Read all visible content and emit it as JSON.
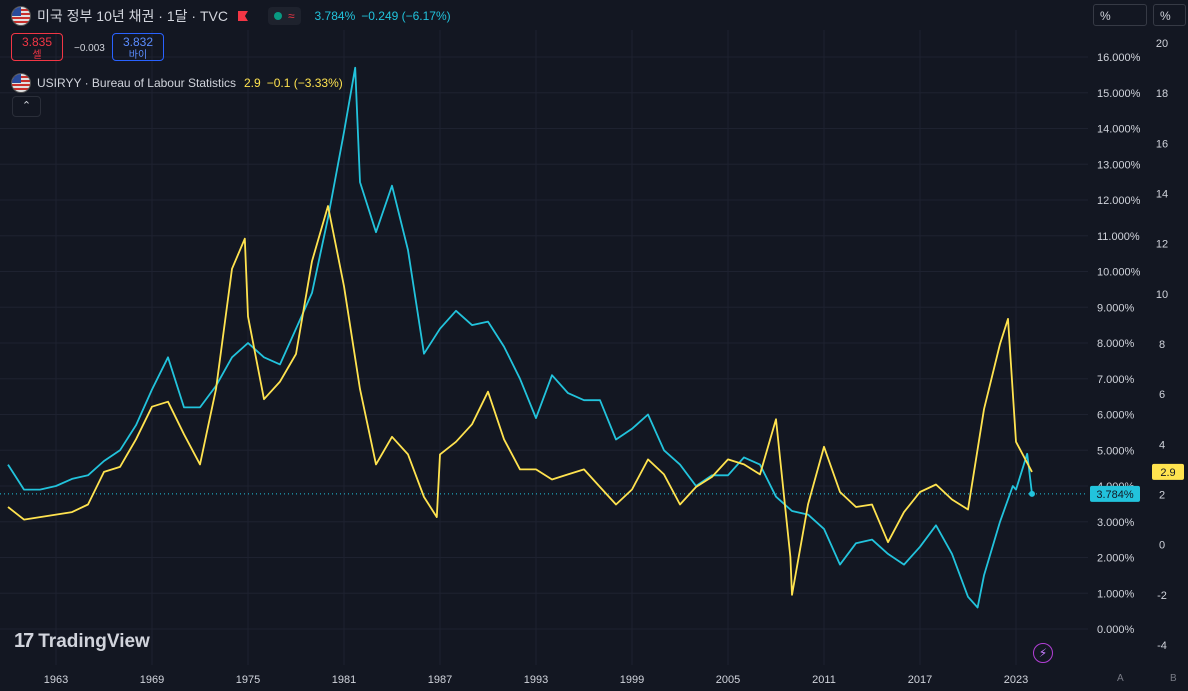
{
  "header": {
    "main_title": "미국 정부 10년 채권 · 1달 · TVC",
    "last_value": "3.784%",
    "change": "−0.249 (−6.17%)",
    "sell_value": "3.835",
    "sell_label": "셀",
    "spread": "−0.003",
    "buy_value": "3.832",
    "buy_label": "바이",
    "secondary_title": "USIRYY · Bureau of Labour Statistics",
    "secondary_value": "2.9",
    "secondary_change": "−0.1 (−3.33%)",
    "collapse_icon": "chevron-up-icon"
  },
  "right_scale": {
    "unit_left": "%",
    "unit_right": "%",
    "price_tag": "3.784%",
    "cpi_tag": "2.9",
    "letters": [
      "A",
      "B"
    ]
  },
  "logo": {
    "mark": "17",
    "name": "TradingView"
  },
  "colors": {
    "treasury": "#22c3dc",
    "cpi": "#ffe34f",
    "background": "#131722",
    "grid": "#1e2230"
  },
  "chart_data": {
    "type": "line",
    "x_ticks": [
      "1963",
      "1969",
      "1975",
      "1981",
      "1987",
      "1993",
      "1999",
      "2005",
      "2011",
      "2017",
      "2023"
    ],
    "x_range": [
      1959.5,
      2027.5
    ],
    "y_left_ticks": [
      "0.000%",
      "1.000%",
      "2.000%",
      "3.000%",
      "4.000%",
      "5.000%",
      "6.000%",
      "7.000%",
      "8.000%",
      "9.000%",
      "10.000%",
      "11.000%",
      "12.000%",
      "13.000%",
      "14.000%",
      "15.000%",
      "16.000%"
    ],
    "y_left_range": [
      0,
      16
    ],
    "y_right_ticks": [
      "-4",
      "-2",
      "0",
      "2",
      "4",
      "6",
      "8",
      "10",
      "12",
      "14",
      "16",
      "18",
      "20"
    ],
    "y_right_range": [
      -4,
      20
    ],
    "series": [
      {
        "name": "미국 정부 10년 채권",
        "axis": "left",
        "x": [
          1960,
          1961,
          1962,
          1963,
          1964,
          1965,
          1966,
          1967,
          1968,
          1969,
          1970,
          1971,
          1972,
          1973,
          1974,
          1975,
          1976,
          1977,
          1978,
          1979,
          1980,
          1981,
          1981.7,
          1982,
          1983,
          1984,
          1985,
          1986,
          1987,
          1988,
          1989,
          1990,
          1991,
          1992,
          1993,
          1994,
          1995,
          1996,
          1997,
          1998,
          1999,
          2000,
          2001,
          2002,
          2003,
          2004,
          2005,
          2006,
          2007,
          2008,
          2009,
          2010,
          2011,
          2012,
          2013,
          2014,
          2015,
          2016,
          2017,
          2018,
          2019,
          2020,
          2020.6,
          2021,
          2022,
          2022.8,
          2023,
          2023.7,
          2024
        ],
        "y": [
          4.6,
          3.9,
          3.9,
          4.0,
          4.2,
          4.3,
          4.7,
          5.0,
          5.7,
          6.7,
          7.6,
          6.2,
          6.2,
          6.8,
          7.6,
          8.0,
          7.6,
          7.4,
          8.4,
          9.4,
          11.5,
          13.9,
          15.7,
          12.5,
          11.1,
          12.4,
          10.6,
          7.7,
          8.4,
          8.9,
          8.5,
          8.6,
          7.9,
          7.0,
          5.9,
          7.1,
          6.6,
          6.4,
          6.4,
          5.3,
          5.6,
          6.0,
          5.0,
          4.6,
          4.0,
          4.3,
          4.3,
          4.8,
          4.6,
          3.7,
          3.3,
          3.2,
          2.8,
          1.8,
          2.4,
          2.5,
          2.1,
          1.8,
          2.3,
          2.9,
          2.1,
          0.9,
          0.6,
          1.5,
          3.0,
          4.0,
          3.9,
          4.9,
          3.78
        ]
      },
      {
        "name": "USIRYY",
        "axis": "right",
        "x": [
          1960,
          1961,
          1962,
          1963,
          1964,
          1965,
          1966,
          1967,
          1968,
          1969,
          1970,
          1971,
          1972,
          1973,
          1974,
          1974.8,
          1975,
          1976,
          1977,
          1978,
          1979,
          1980,
          1981,
          1982,
          1983,
          1984,
          1985,
          1986,
          1986.8,
          1987,
          1988,
          1989,
          1990,
          1991,
          1992,
          1993,
          1994,
          1995,
          1996,
          1997,
          1998,
          1999,
          2000,
          2001,
          2002,
          2003,
          2004,
          2005,
          2006,
          2007,
          2008,
          2008.9,
          2009,
          2010,
          2011,
          2012,
          2013,
          2014,
          2015,
          2016,
          2017,
          2018,
          2019,
          2020,
          2021,
          2022,
          2022.5,
          2023,
          2024
        ],
        "y": [
          1.5,
          1.0,
          1.1,
          1.2,
          1.3,
          1.6,
          2.9,
          3.1,
          4.2,
          5.5,
          5.7,
          4.4,
          3.2,
          6.2,
          11.0,
          12.2,
          9.1,
          5.8,
          6.5,
          7.6,
          11.3,
          13.5,
          10.3,
          6.2,
          3.2,
          4.3,
          3.6,
          1.9,
          1.1,
          3.6,
          4.1,
          4.8,
          6.1,
          4.2,
          3.0,
          3.0,
          2.6,
          2.8,
          3.0,
          2.3,
          1.6,
          2.2,
          3.4,
          2.8,
          1.6,
          2.3,
          2.7,
          3.4,
          3.2,
          2.8,
          5.0,
          -0.5,
          -2.0,
          1.6,
          3.9,
          2.1,
          1.5,
          1.6,
          0.1,
          1.3,
          2.1,
          2.4,
          1.8,
          1.4,
          5.4,
          8.0,
          9.0,
          4.1,
          2.9
        ]
      }
    ]
  }
}
